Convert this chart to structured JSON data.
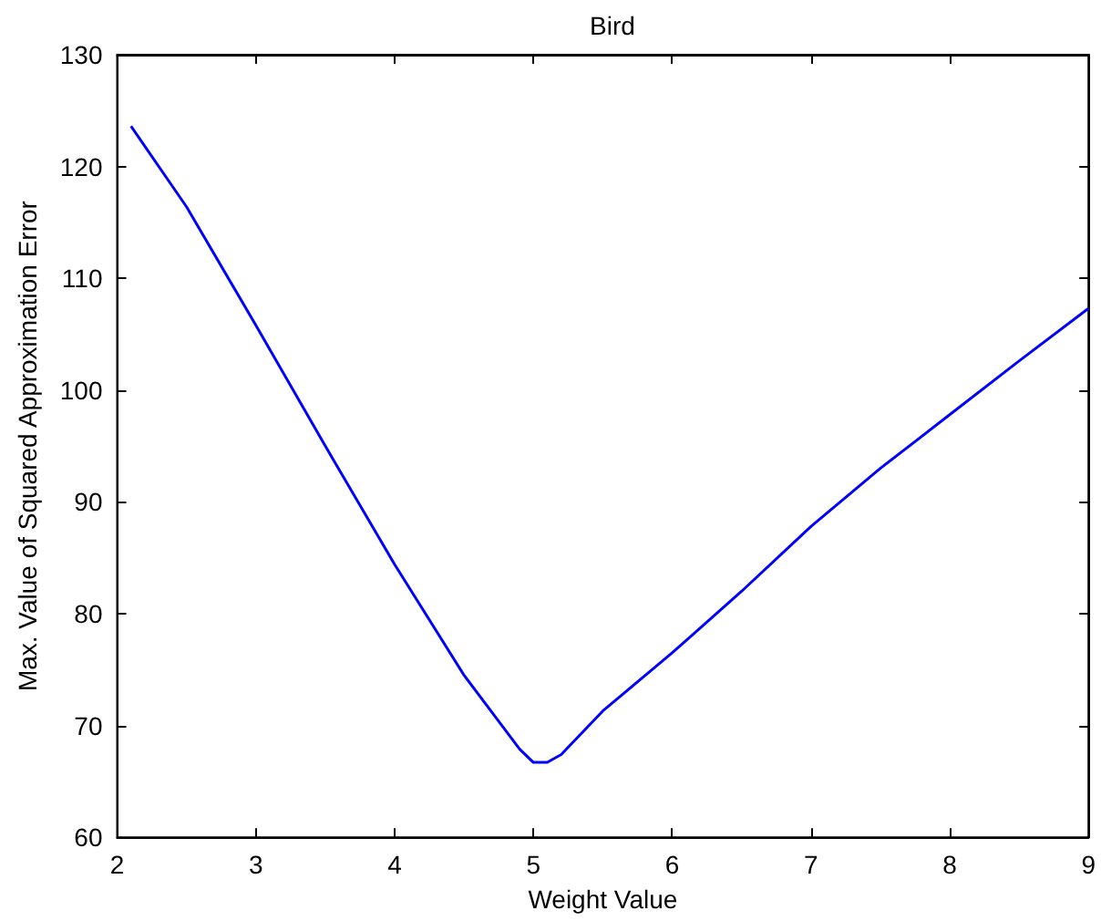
{
  "chart_data": {
    "type": "line",
    "title": "Bird",
    "xlabel": "Weight Value",
    "ylabel": "Max. Value of Squared Approximation Error",
    "x": [
      2.1,
      2.5,
      3,
      3.5,
      4,
      4.5,
      4.9,
      5.0,
      5.1,
      5.2,
      5.5,
      6,
      6.5,
      7,
      7.5,
      8,
      8.5,
      9
    ],
    "series": [
      {
        "color": "#0000ff",
        "values": [
          123.6,
          116.4,
          105.8,
          95.0,
          84.4,
          74.5,
          67.9,
          66.7,
          66.7,
          67.4,
          71.3,
          76.5,
          82.0,
          87.8,
          93.0,
          97.8,
          102.6,
          107.3
        ]
      }
    ],
    "xlim": [
      2,
      9
    ],
    "xticks": [
      2,
      3,
      4,
      5,
      6,
      7,
      8,
      9
    ],
    "ylim": [
      60,
      130
    ],
    "yticks": [
      60,
      70,
      80,
      90,
      100,
      110,
      120,
      130
    ],
    "marker": "none",
    "line_style": "solid"
  }
}
